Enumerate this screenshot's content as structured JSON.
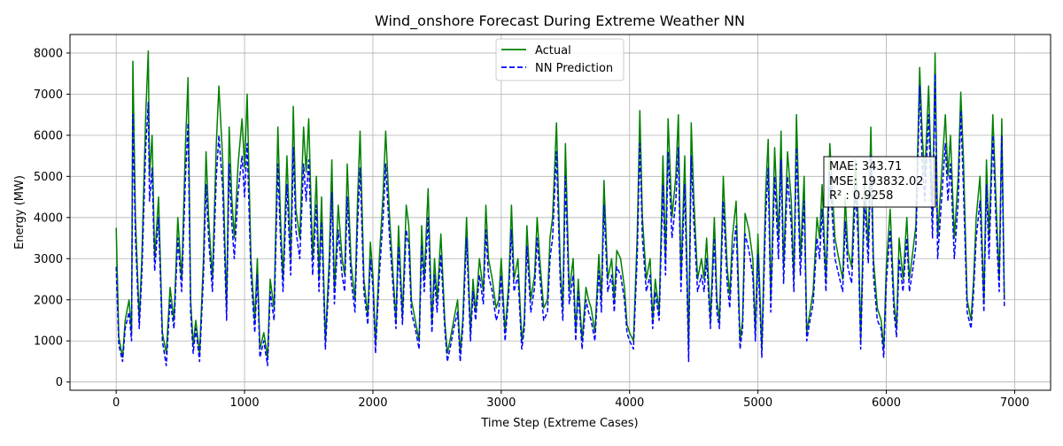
{
  "chart_data": {
    "type": "line",
    "title": "Wind_onshore Forecast During Extreme Weather NN",
    "xlabel": "Time Step (Extreme Cases)",
    "ylabel": "Energy (MW)",
    "xlim": [
      -360,
      7280
    ],
    "ylim": [
      -200,
      8450
    ],
    "x_ticks": [
      0,
      1000,
      2000,
      3000,
      4000,
      5000,
      6000,
      7000
    ],
    "y_ticks": [
      0,
      1000,
      2000,
      3000,
      4000,
      5000,
      6000,
      7000,
      8000
    ],
    "grid": true,
    "legend_position": "top-center",
    "series": [
      {
        "name": "Actual",
        "color": "#008000",
        "line_style": "solid",
        "x": [
          0,
          20,
          50,
          70,
          100,
          120,
          130,
          150,
          180,
          200,
          230,
          250,
          260,
          280,
          300,
          330,
          360,
          390,
          420,
          450,
          480,
          510,
          540,
          560,
          580,
          600,
          620,
          650,
          680,
          700,
          720,
          750,
          780,
          800,
          830,
          860,
          880,
          900,
          920,
          950,
          980,
          1000,
          1020,
          1050,
          1080,
          1100,
          1120,
          1150,
          1180,
          1200,
          1230,
          1260,
          1280,
          1300,
          1330,
          1360,
          1380,
          1400,
          1430,
          1460,
          1480,
          1500,
          1530,
          1560,
          1580,
          1600,
          1630,
          1660,
          1680,
          1700,
          1730,
          1760,
          1780,
          1800,
          1830,
          1860,
          1880,
          1900,
          1930,
          1960,
          1980,
          2000,
          2020,
          2050,
          2080,
          2100,
          2130,
          2160,
          2180,
          2200,
          2230,
          2260,
          2280,
          2300,
          2330,
          2360,
          2380,
          2400,
          2430,
          2460,
          2480,
          2500,
          2530,
          2560,
          2580,
          2600,
          2630,
          2660,
          2680,
          2700,
          2730,
          2760,
          2780,
          2800,
          2830,
          2860,
          2880,
          2900,
          2930,
          2960,
          2980,
          3000,
          3030,
          3060,
          3080,
          3100,
          3130,
          3160,
          3180,
          3200,
          3230,
          3260,
          3280,
          3300,
          3330,
          3360,
          3380,
          3400,
          3430,
          3460,
          3480,
          3500,
          3530,
          3560,
          3580,
          3600,
          3630,
          3660,
          3680,
          3700,
          3730,
          3760,
          3780,
          3800,
          3830,
          3860,
          3880,
          3900,
          3930,
          3960,
          3980,
          4000,
          4030,
          4060,
          4080,
          4100,
          4130,
          4160,
          4180,
          4200,
          4230,
          4260,
          4280,
          4300,
          4330,
          4360,
          4380,
          4400,
          4430,
          4460,
          4480,
          4500,
          4530,
          4560,
          4580,
          4600,
          4630,
          4660,
          4680,
          4700,
          4730,
          4760,
          4780,
          4800,
          4830,
          4860,
          4880,
          4900,
          4930,
          4960,
          4980,
          5000,
          5030,
          5060,
          5080,
          5100,
          5130,
          5160,
          5180,
          5200,
          5230,
          5260,
          5280,
          5300,
          5330,
          5360,
          5380,
          5400,
          5430,
          5460,
          5480,
          5500,
          5530,
          5560,
          5580,
          5600,
          5630,
          5660,
          5680,
          5700,
          5730,
          5760,
          5780,
          5800,
          5830,
          5860,
          5880,
          5900,
          5930,
          5960,
          5980,
          6000,
          6030,
          6060,
          6080,
          6100,
          6130,
          6160,
          6180,
          6200,
          6230,
          6260,
          6280,
          6300,
          6330,
          6360,
          6380,
          6400,
          6430,
          6460,
          6480,
          6500,
          6530,
          6560,
          6580,
          6600,
          6630,
          6660,
          6680,
          6700,
          6730,
          6760,
          6780,
          6800,
          6830,
          6860,
          6880,
          6900,
          6920
        ],
        "y": [
          3750,
          1100,
          600,
          1500,
          2000,
          1200,
          7800,
          4000,
          1500,
          3000,
          6500,
          8050,
          5000,
          6000,
          3000,
          4500,
          1200,
          700,
          2300,
          1500,
          4000,
          2500,
          5800,
          7400,
          2000,
          900,
          1500,
          700,
          3000,
          5600,
          4000,
          2500,
          5800,
          7200,
          5400,
          1800,
          6200,
          4500,
          3500,
          5300,
          6400,
          5200,
          7000,
          3000,
          1500,
          3000,
          800,
          1200,
          600,
          2500,
          1800,
          6200,
          4000,
          2500,
          5500,
          3000,
          6700,
          4200,
          3500,
          6200,
          5100,
          6400,
          3000,
          5000,
          2500,
          4500,
          1000,
          3000,
          5400,
          2200,
          4300,
          3000,
          2600,
          5300,
          2900,
          2000,
          4400,
          6100,
          2500,
          1600,
          3400,
          2600,
          900,
          3000,
          4600,
          6100,
          4000,
          2500,
          1500,
          3800,
          1600,
          4300,
          3800,
          2000,
          1500,
          1000,
          3800,
          2500,
          4700,
          1400,
          3000,
          2000,
          3600,
          1500,
          700,
          1000,
          1500,
          2000,
          700,
          1500,
          4000,
          1200,
          2500,
          1700,
          3000,
          2200,
          4300,
          3000,
          2500,
          1800,
          2000,
          3000,
          1200,
          2500,
          4300,
          2500,
          3000,
          1000,
          1500,
          3800,
          2000,
          2600,
          4000,
          3000,
          1800,
          2000,
          3500,
          4000,
          6300,
          2800,
          1800,
          5800,
          2200,
          3000,
          1200,
          2500,
          1000,
          2300,
          2000,
          1800,
          1200,
          3100,
          2000,
          4900,
          2500,
          3000,
          2000,
          3200,
          3000,
          2300,
          1400,
          1200,
          1000,
          3600,
          6600,
          4000,
          2500,
          3000,
          1500,
          2500,
          1700,
          5500,
          3000,
          6400,
          4000,
          5000,
          6500,
          2500,
          5500,
          800,
          6300,
          4500,
          2500,
          3000,
          2500,
          3500,
          1500,
          4000,
          2000,
          1500,
          5000,
          2800,
          2100,
          3500,
          4400,
          1000,
          1500,
          4100,
          3700,
          3000,
          1200,
          3600,
          800,
          4600,
          5900,
          2000,
          5700,
          3500,
          6100,
          2800,
          5600,
          4400,
          2500,
          6500,
          3000,
          5000,
          1200,
          1600,
          2200,
          4000,
          3500,
          4800,
          2500,
          5800,
          4600,
          3500,
          3000,
          2500,
          4500,
          3200,
          2800,
          5400,
          4000,
          1000,
          5000,
          3300,
          6200,
          3000,
          1800,
          1500,
          800,
          2800,
          4200,
          2000,
          1300,
          3500,
          2500,
          4000,
          2500,
          3000,
          3800,
          7650,
          6000,
          5000,
          7200,
          4000,
          8000,
          3500,
          5000,
          6500,
          5000,
          6000,
          3500,
          5000,
          7050,
          5500,
          2000,
          1500,
          2500,
          4000,
          5000,
          2000,
          5400,
          3500,
          6500,
          4000,
          2500,
          6400,
          2000
        ]
      },
      {
        "name": "NN Prediction",
        "color": "#0000ff",
        "line_style": "dashed",
        "x": [
          0,
          20,
          50,
          70,
          100,
          120,
          130,
          150,
          180,
          200,
          230,
          250,
          260,
          280,
          300,
          330,
          360,
          390,
          420,
          450,
          480,
          510,
          540,
          560,
          580,
          600,
          620,
          650,
          680,
          700,
          720,
          750,
          780,
          800,
          830,
          860,
          880,
          900,
          920,
          950,
          980,
          1000,
          1020,
          1050,
          1080,
          1100,
          1120,
          1150,
          1180,
          1200,
          1230,
          1260,
          1280,
          1300,
          1330,
          1360,
          1380,
          1400,
          1430,
          1460,
          1480,
          1500,
          1530,
          1560,
          1580,
          1600,
          1630,
          1660,
          1680,
          1700,
          1730,
          1760,
          1780,
          1800,
          1830,
          1860,
          1880,
          1900,
          1930,
          1960,
          1980,
          2000,
          2020,
          2050,
          2080,
          2100,
          2130,
          2160,
          2180,
          2200,
          2230,
          2260,
          2280,
          2300,
          2330,
          2360,
          2380,
          2400,
          2430,
          2460,
          2480,
          2500,
          2530,
          2560,
          2580,
          2600,
          2630,
          2660,
          2680,
          2700,
          2730,
          2760,
          2780,
          2800,
          2830,
          2860,
          2880,
          2900,
          2930,
          2960,
          2980,
          3000,
          3030,
          3060,
          3080,
          3100,
          3130,
          3160,
          3180,
          3200,
          3230,
          3260,
          3280,
          3300,
          3330,
          3360,
          3380,
          3400,
          3430,
          3460,
          3480,
          3500,
          3530,
          3560,
          3580,
          3600,
          3630,
          3660,
          3680,
          3700,
          3730,
          3760,
          3780,
          3800,
          3830,
          3860,
          3880,
          3900,
          3930,
          3960,
          3980,
          4000,
          4030,
          4060,
          4080,
          4100,
          4130,
          4160,
          4180,
          4200,
          4230,
          4260,
          4280,
          4300,
          4330,
          4360,
          4380,
          4400,
          4430,
          4460,
          4480,
          4500,
          4530,
          4560,
          4580,
          4600,
          4630,
          4660,
          4680,
          4700,
          4730,
          4760,
          4780,
          4800,
          4830,
          4860,
          4880,
          4900,
          4930,
          4960,
          4980,
          5000,
          5030,
          5060,
          5080,
          5100,
          5130,
          5160,
          5180,
          5200,
          5230,
          5260,
          5280,
          5300,
          5330,
          5360,
          5380,
          5400,
          5430,
          5460,
          5480,
          5500,
          5530,
          5560,
          5580,
          5600,
          5630,
          5660,
          5680,
          5700,
          5730,
          5760,
          5780,
          5800,
          5830,
          5860,
          5880,
          5900,
          5930,
          5960,
          5980,
          6000,
          6030,
          6060,
          6080,
          6100,
          6130,
          6160,
          6180,
          6200,
          6230,
          6260,
          6280,
          6300,
          6330,
          6360,
          6380,
          6400,
          6430,
          6460,
          6480,
          6500,
          6530,
          6560,
          6580,
          6600,
          6630,
          6660,
          6680,
          6700,
          6730,
          6760,
          6780,
          6800,
          6830,
          6860,
          6880,
          6900,
          6920
        ],
        "y": [
          2800,
          900,
          500,
          1300,
          1700,
          1000,
          6500,
          3500,
          1300,
          2600,
          5700,
          6800,
          4400,
          5200,
          2700,
          4000,
          1000,
          400,
          2000,
          1300,
          3500,
          2200,
          5000,
          6300,
          1700,
          700,
          1300,
          500,
          2600,
          4800,
          3500,
          2200,
          5000,
          6000,
          4700,
          1500,
          5300,
          3900,
          3000,
          4600,
          5500,
          4500,
          5800,
          2600,
          1200,
          2600,
          600,
          1000,
          400,
          2200,
          1500,
          5300,
          3500,
          2200,
          4800,
          2600,
          5700,
          3700,
          3000,
          5300,
          4400,
          5400,
          2600,
          4300,
          2200,
          3900,
          800,
          2600,
          4600,
          1900,
          3700,
          2600,
          2200,
          4500,
          2500,
          1700,
          3800,
          5200,
          2200,
          1400,
          3000,
          2300,
          700,
          2600,
          4000,
          5300,
          3500,
          2200,
          1300,
          3300,
          1400,
          3700,
          3300,
          1700,
          1300,
          800,
          3300,
          2200,
          4000,
          1200,
          2600,
          1700,
          3100,
          1300,
          500,
          800,
          1300,
          1700,
          500,
          1300,
          3500,
          1000,
          2200,
          1500,
          2600,
          1900,
          3700,
          2600,
          2200,
          1500,
          1700,
          2600,
          1000,
          2200,
          3700,
          2200,
          2600,
          800,
          1300,
          3300,
          1700,
          2300,
          3500,
          2600,
          1500,
          1700,
          3000,
          3500,
          5600,
          2400,
          1500,
          5000,
          1900,
          2600,
          1000,
          2200,
          800,
          2000,
          1700,
          1500,
          1000,
          2700,
          1700,
          4300,
          2200,
          2600,
          1700,
          2800,
          2600,
          2000,
          1200,
          1000,
          800,
          3100,
          5800,
          3500,
          2200,
          2600,
          1300,
          2200,
          1500,
          4800,
          2600,
          5600,
          3500,
          4400,
          5700,
          2200,
          4800,
          500,
          5500,
          3900,
          2200,
          2600,
          2200,
          3000,
          1300,
          3500,
          1700,
          1300,
          4400,
          2400,
          1800,
          3000,
          3800,
          800,
          1300,
          3600,
          3200,
          2600,
          1000,
          3100,
          600,
          4000,
          5200,
          1700,
          5000,
          3000,
          5400,
          2400,
          5000,
          3800,
          2200,
          5700,
          2600,
          4400,
          1000,
          1400,
          1900,
          3500,
          3000,
          4200,
          2200,
          5100,
          4000,
          3000,
          2600,
          2200,
          3900,
          2800,
          2400,
          4700,
          3500,
          800,
          4400,
          2900,
          5500,
          2600,
          1500,
          1300,
          600,
          2400,
          3700,
          1700,
          1100,
          3000,
          2200,
          3500,
          2200,
          2600,
          3300,
          7200,
          5300,
          4400,
          6500,
          3500,
          7500,
          3000,
          4400,
          5800,
          4400,
          5300,
          3000,
          4400,
          6600,
          4800,
          1700,
          1300,
          2200,
          3500,
          4400,
          1700,
          4800,
          3000,
          6000,
          3500,
          2200,
          6000,
          1800
        ]
      }
    ],
    "annotations": {
      "mae": "MAE: 343.71",
      "mse": "MSE: 193832.02",
      "r2": "R² : 0.9258"
    }
  }
}
